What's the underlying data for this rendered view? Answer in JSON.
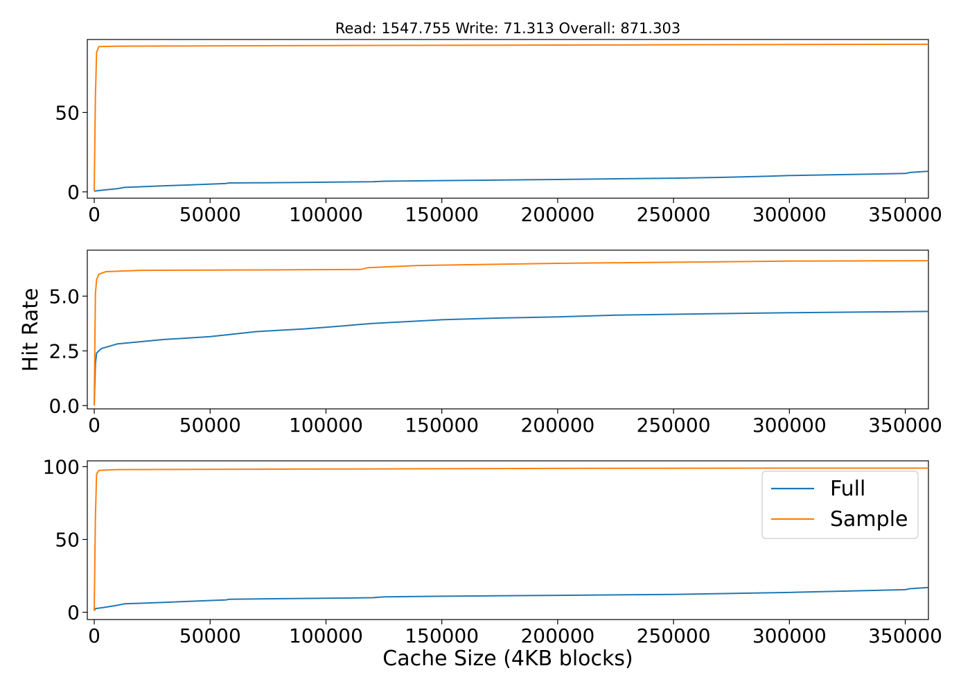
{
  "figure": {
    "title": "Read: 1547.755 Write: 71.313 Overall: 871.303",
    "xlabel": "Cache Size (4KB blocks)",
    "ylabel": "Hit Rate",
    "colors": {
      "Full": "#1f77b4",
      "Sample": "#ff7f0e"
    },
    "legend": {
      "placement": "right",
      "entries": [
        "Full",
        "Sample"
      ]
    }
  },
  "chart_data": [
    {
      "type": "line",
      "title": "Read: 1547.755 Write: 71.313 Overall: 871.303",
      "xlabel": "",
      "ylabel": "",
      "xlim": [
        -3000,
        360000
      ],
      "ylim": [
        -4,
        96
      ],
      "xticks": [
        0,
        50000,
        100000,
        150000,
        200000,
        250000,
        300000,
        350000
      ],
      "yticks": [
        0,
        50
      ],
      "grid": false,
      "series": [
        {
          "name": "Full",
          "color": "#1f77b4",
          "x": [
            0,
            5000,
            10000,
            13000,
            20000,
            30000,
            40000,
            57000,
            58000,
            70000,
            90000,
            100000,
            120000,
            125000,
            150000,
            200000,
            250000,
            270000,
            290000,
            300000,
            350000,
            352000,
            360000
          ],
          "y": [
            0.5,
            1.3,
            2,
            2.8,
            3.2,
            3.8,
            4.3,
            5.3,
            5.6,
            5.7,
            5.9,
            6.1,
            6.4,
            6.7,
            7.1,
            7.8,
            8.6,
            9.1,
            9.8,
            10.3,
            11.6,
            12.2,
            13
          ]
        },
        {
          "name": "Sample",
          "color": "#ff7f0e",
          "x": [
            0,
            500,
            1000,
            2000,
            10000,
            100000,
            200000,
            300000,
            360000
          ],
          "y": [
            0.5,
            60,
            88,
            91.5,
            91.8,
            92.2,
            92.5,
            92.8,
            93
          ]
        }
      ]
    },
    {
      "type": "line",
      "title": "",
      "xlabel": "",
      "ylabel": "Hit Rate",
      "xlim": [
        -3000,
        360000
      ],
      "ylim": [
        -0.15,
        7.1
      ],
      "xticks": [
        0,
        50000,
        100000,
        150000,
        200000,
        250000,
        300000,
        350000
      ],
      "yticks": [
        0.0,
        2.5,
        5.0
      ],
      "ytick_labels": [
        "0.0",
        "2.5",
        "5.0"
      ],
      "grid": false,
      "series": [
        {
          "name": "Full",
          "color": "#1f77b4",
          "x": [
            0,
            500,
            1000,
            3000,
            10000,
            30000,
            50000,
            70000,
            90000,
            100000,
            120000,
            150000,
            175000,
            200000,
            225000,
            250000,
            300000,
            360000
          ],
          "y": [
            0,
            1.9,
            2.4,
            2.6,
            2.82,
            3.02,
            3.15,
            3.38,
            3.5,
            3.58,
            3.75,
            3.92,
            4.0,
            4.05,
            4.13,
            4.17,
            4.24,
            4.3
          ]
        },
        {
          "name": "Sample",
          "color": "#ff7f0e",
          "x": [
            0,
            500,
            1000,
            2000,
            5000,
            20000,
            80000,
            115000,
            118000,
            140000,
            200000,
            250000,
            300000,
            360000
          ],
          "y": [
            0,
            5.1,
            5.75,
            6.0,
            6.12,
            6.18,
            6.2,
            6.22,
            6.3,
            6.4,
            6.5,
            6.55,
            6.6,
            6.62
          ]
        }
      ]
    },
    {
      "type": "line",
      "title": "",
      "xlabel": "Cache Size (4KB blocks)",
      "ylabel": "",
      "xlim": [
        -3000,
        360000
      ],
      "ylim": [
        -5,
        104
      ],
      "xticks": [
        0,
        50000,
        100000,
        150000,
        200000,
        250000,
        300000,
        350000
      ],
      "yticks": [
        0,
        50,
        100
      ],
      "grid": false,
      "legend": {
        "placement": "right",
        "entries": [
          "Full",
          "Sample"
        ]
      },
      "series": [
        {
          "name": "Full",
          "color": "#1f77b4",
          "x": [
            0,
            500,
            5000,
            10000,
            13000,
            20000,
            30000,
            57000,
            58000,
            70000,
            100000,
            120000,
            125000,
            150000,
            200000,
            250000,
            270000,
            300000,
            350000,
            352000,
            360000
          ],
          "y": [
            1,
            2.5,
            3.5,
            4.8,
            5.8,
            6.2,
            6.8,
            8.5,
            8.9,
            9.2,
            9.6,
            10,
            10.6,
            11,
            11.6,
            12.3,
            12.8,
            13.6,
            15.5,
            16.2,
            17
          ]
        },
        {
          "name": "Sample",
          "color": "#ff7f0e",
          "x": [
            0,
            500,
            1000,
            2000,
            10000,
            100000,
            200000,
            300000,
            360000
          ],
          "y": [
            1,
            65,
            95,
            97.5,
            98,
            98.4,
            98.8,
            99,
            99
          ]
        }
      ]
    }
  ]
}
